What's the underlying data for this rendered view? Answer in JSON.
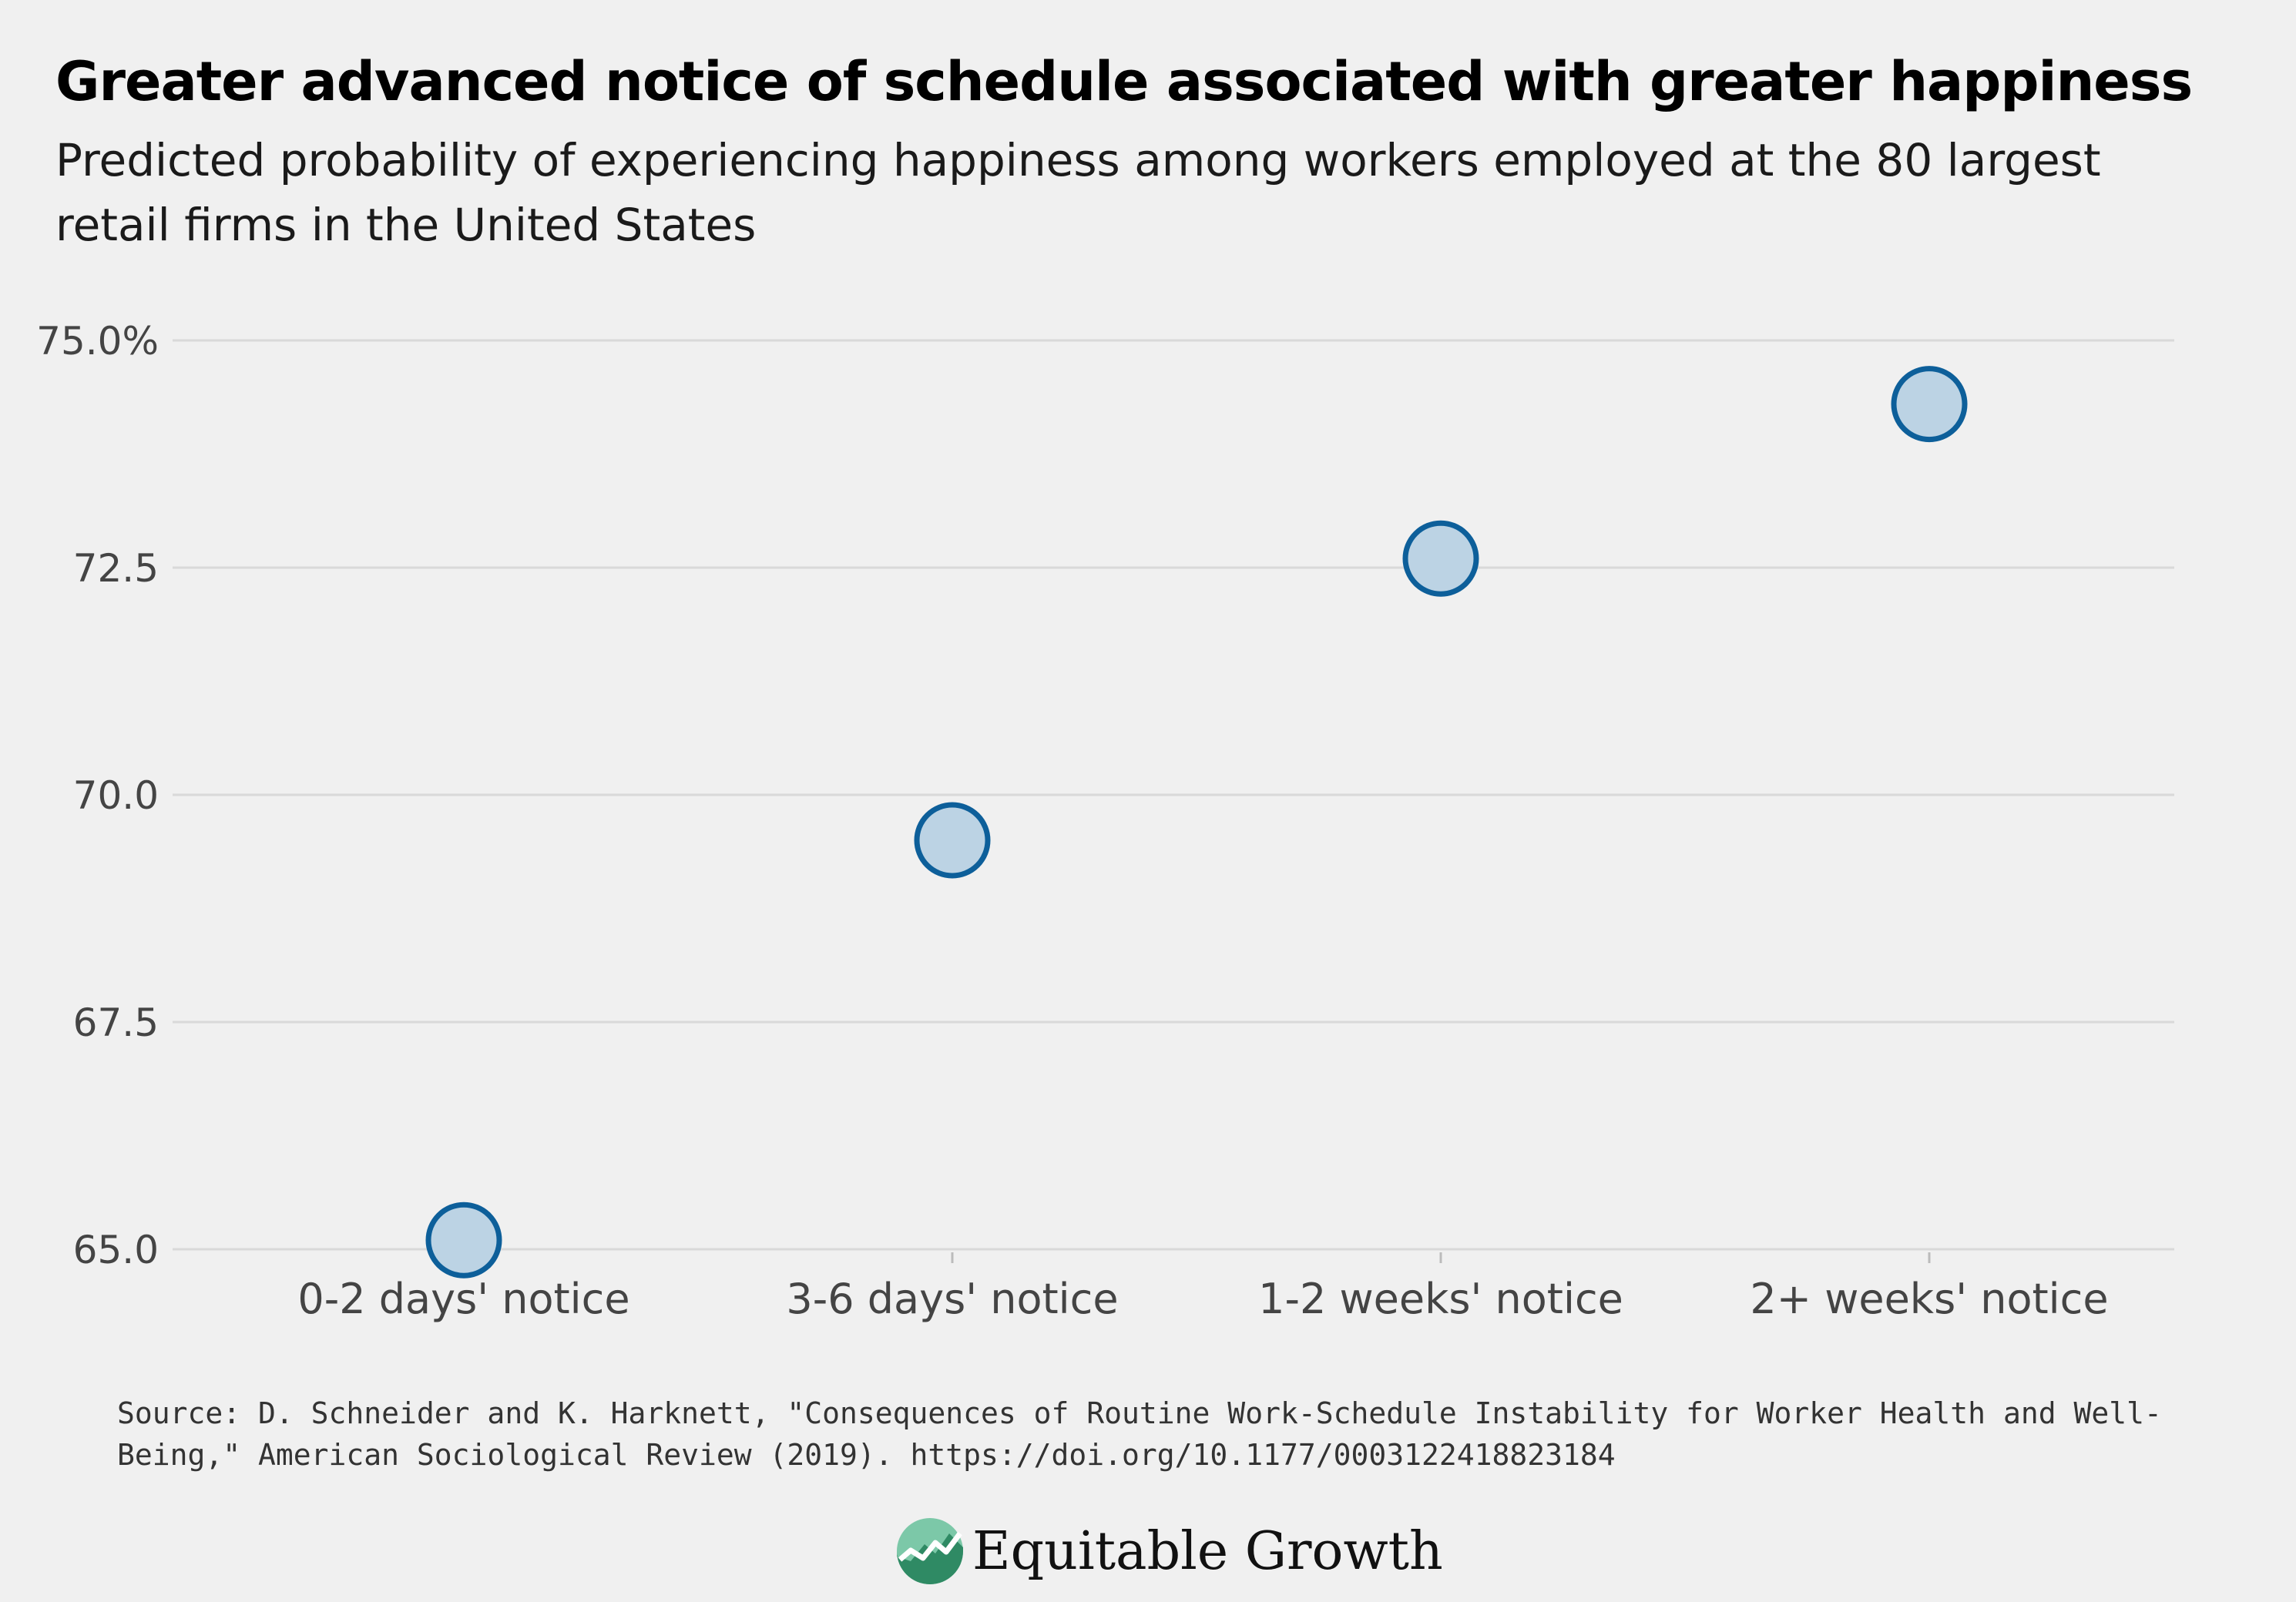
{
  "header": {
    "title": "Greater advanced notice of schedule associated with greater happiness",
    "subtitle": "Predicted probability of experiencing happiness among workers employed at the 80 largest retail firms in the United States"
  },
  "footer": {
    "source": "Source: D. Schneider and K. Harknett, \"Consequences of Routine Work-Schedule Instability for Worker Health and Well-Being,\" American Sociological Review (2019). https://doi.org/10.1177/0003122418823184",
    "brand_name": "Equitable Growth",
    "brand_logo_icon": "growth-chart-logo-icon"
  },
  "colors": {
    "background": "#f0f0f0",
    "marker_stroke": "#0d5f9a",
    "marker_fill": "#bcd3e4",
    "gridline": "#d9d9d9",
    "logo_green": "#4aa683"
  },
  "chart_data": {
    "type": "scatter",
    "title": "Greater advanced notice of schedule associated with greater happiness",
    "subtitle": "Predicted probability of experiencing happiness among workers employed at the 80 largest retail firms in the United States",
    "xlabel": "",
    "ylabel": "",
    "categories": [
      "0-2 days' notice",
      "3-6 days' notice",
      "1-2 weeks' notice",
      "2+ weeks' notice"
    ],
    "values": [
      65.1,
      69.5,
      72.6,
      74.3
    ],
    "ylim": [
      65.0,
      75.0
    ],
    "yticks": [
      65.0,
      67.5,
      70.0,
      72.5,
      75.0
    ],
    "ytick_labels": [
      "65.0",
      "67.5",
      "70.0",
      "72.5",
      "75.0%"
    ],
    "grid": true,
    "legend": "none"
  }
}
